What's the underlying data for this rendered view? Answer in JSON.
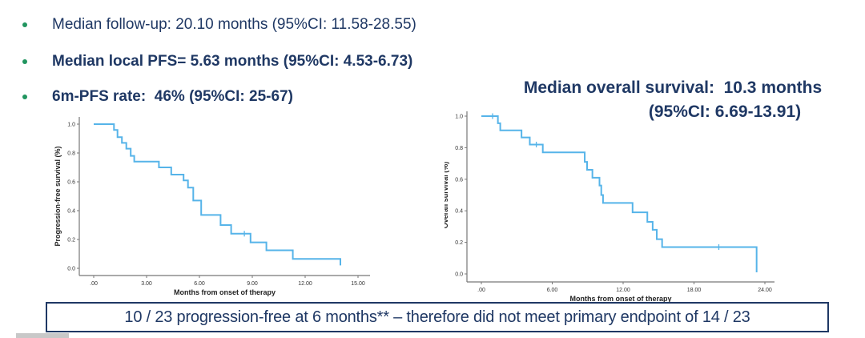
{
  "bullets": [
    {
      "text": "Median follow-up: 20.10 months (95%CI: 11.58-28.55)"
    },
    {
      "text": "Median local PFS= 5.63 months (95%CI: 4.53-6.73)"
    },
    {
      "text": "6m-PFS rate:  46% (95%CI: 25-67)"
    }
  ],
  "os_title": {
    "line1": "Median overall survival:  10.3 months",
    "line2": "(95%CI: 6.69-13.91)"
  },
  "footer_box": {
    "text": "10 / 23 progression-free at 6 months** – therefore did not meet primary endpoint of 14 / 23"
  },
  "colors": {
    "navy_text": "#1f3864",
    "bullet_green": "#21955f",
    "curve_blue": "#56b4e9",
    "axis_grey": "#777777",
    "tick_text": "#333333"
  },
  "chart_data": [
    {
      "type": "line",
      "subtype": "kaplan-meier-step",
      "title": "",
      "xlabel": "Months from onset of therapy",
      "ylabel": "Progression-free survival (%)",
      "xlim": [
        0,
        15.8
      ],
      "ylim": [
        0,
        1.05
      ],
      "grid": false,
      "legend": "none",
      "x_ticks": [
        0,
        3,
        6,
        9,
        12,
        15
      ],
      "x_tick_labels": [
        ".00",
        "3.00",
        "6.00",
        "9.00",
        "12.00",
        "15.00"
      ],
      "y_ticks": [
        0.0,
        0.2,
        0.4,
        0.6,
        0.8,
        1.0
      ],
      "y_tick_labels": [
        "0.0",
        "0.2",
        "0.4",
        "0.6",
        "0.8",
        "1.0"
      ],
      "steps": [
        [
          0,
          1.0
        ],
        [
          1.15,
          0.96
        ],
        [
          1.35,
          0.91
        ],
        [
          1.6,
          0.87
        ],
        [
          1.85,
          0.83
        ],
        [
          2.1,
          0.78
        ],
        [
          2.3,
          0.74
        ],
        [
          3.7,
          0.7
        ],
        [
          4.4,
          0.65
        ],
        [
          5.1,
          0.61
        ],
        [
          5.35,
          0.56
        ],
        [
          5.65,
          0.47
        ],
        [
          6.1,
          0.37
        ],
        [
          7.2,
          0.3
        ],
        [
          7.8,
          0.24
        ],
        [
          8.9,
          0.18
        ],
        [
          9.8,
          0.125
        ],
        [
          11.3,
          0.065
        ],
        [
          14.0,
          0.02
        ]
      ],
      "censor_marks": [
        [
          8.55,
          0.24
        ]
      ]
    },
    {
      "type": "line",
      "subtype": "kaplan-meier-step",
      "title": "",
      "xlabel": "Months from onset of therapy",
      "ylabel": "Overall survival (%)",
      "xlim": [
        0,
        25
      ],
      "ylim": [
        0,
        1.05
      ],
      "grid": false,
      "legend": "none",
      "x_ticks": [
        0,
        6,
        12,
        18,
        24
      ],
      "x_tick_labels": [
        ".00",
        "6.00",
        "12.00",
        "18.00",
        "24.00"
      ],
      "y_ticks": [
        0.0,
        0.2,
        0.4,
        0.6,
        0.8,
        1.0
      ],
      "y_tick_labels": [
        "0.0",
        "0.2",
        "0.4",
        "0.6",
        "0.8",
        "1.0"
      ],
      "steps": [
        [
          0,
          1.0
        ],
        [
          1.4,
          0.955
        ],
        [
          1.6,
          0.91
        ],
        [
          3.4,
          0.865
        ],
        [
          4.1,
          0.82
        ],
        [
          5.2,
          0.77
        ],
        [
          8.75,
          0.71
        ],
        [
          8.95,
          0.66
        ],
        [
          9.4,
          0.61
        ],
        [
          10.0,
          0.56
        ],
        [
          10.15,
          0.5
        ],
        [
          10.3,
          0.45
        ],
        [
          12.8,
          0.39
        ],
        [
          14.05,
          0.33
        ],
        [
          14.5,
          0.28
        ],
        [
          14.85,
          0.22
        ],
        [
          15.3,
          0.17
        ],
        [
          23.3,
          0.01
        ]
      ],
      "censor_marks": [
        [
          0.95,
          1.0
        ],
        [
          4.65,
          0.82
        ],
        [
          20.1,
          0.17
        ]
      ]
    }
  ]
}
